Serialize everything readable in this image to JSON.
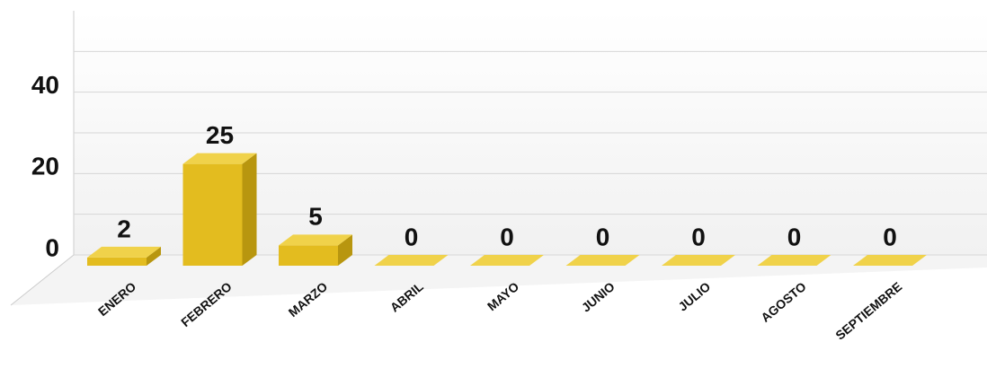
{
  "chart_data": {
    "type": "bar3d",
    "categories": [
      "ENERO",
      "FEBRERO",
      "MARZO",
      "ABRIL",
      "MAYO",
      "JUNIO",
      "JULIO",
      "AGOSTO",
      "SEPTIEMBRE"
    ],
    "values": [
      2,
      25,
      5,
      0,
      0,
      0,
      0,
      0,
      0
    ],
    "color": "#e3bc1f",
    "ylim": [
      0,
      60
    ],
    "yticks": [
      0,
      20,
      40
    ],
    "minor_yticks": [
      10,
      30,
      50
    ],
    "grid": true
  }
}
